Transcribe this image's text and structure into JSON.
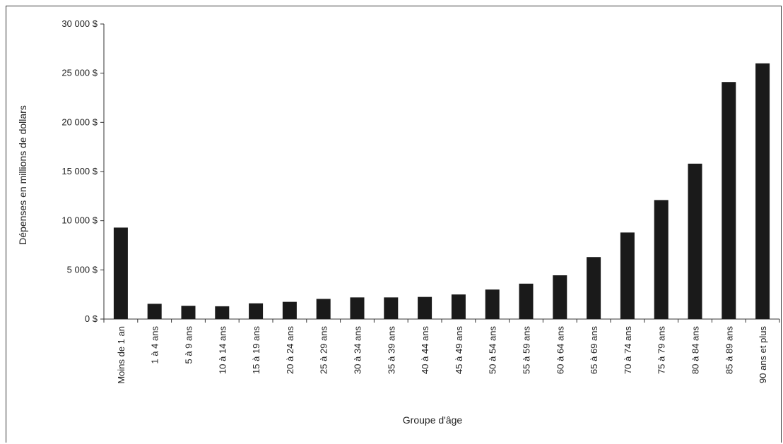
{
  "chart_data": {
    "type": "bar",
    "xlabel": "Groupe d'âge",
    "ylabel": "Dépenses en millions de dollars",
    "ylim": [
      0,
      30000
    ],
    "yticks": [
      0,
      5000,
      10000,
      15000,
      20000,
      25000,
      30000
    ],
    "ytick_labels": [
      "0 $",
      "5 000 $",
      "10 000 $",
      "15 000 $",
      "20 000 $",
      "25 000 $",
      "30 000 $"
    ],
    "categories": [
      "Moins de 1 an",
      "1 à 4 ans",
      "5 à 9 ans",
      "10 à 14 ans",
      "15 à 19 ans",
      "20 à 24 ans",
      "25 à 29 ans",
      "30 à 34 ans",
      "35 à 39 ans",
      "40 à 44 ans",
      "45 à 49 ans",
      "50 à 54 ans",
      "55 à 59 ans",
      "60 à 64 ans",
      "65 à 69 ans",
      "70 à 74 ans",
      "75 à 79 ans",
      "80 à 84 ans",
      "85 à 89 ans",
      "90 ans et plus"
    ],
    "values": [
      9300,
      1550,
      1350,
      1300,
      1600,
      1750,
      2050,
      2200,
      2200,
      2250,
      2500,
      3000,
      3600,
      4450,
      6300,
      8800,
      12100,
      15800,
      24100,
      26000
    ],
    "bar_color": "#1a1a1a",
    "grid": false,
    "legend": "none"
  }
}
